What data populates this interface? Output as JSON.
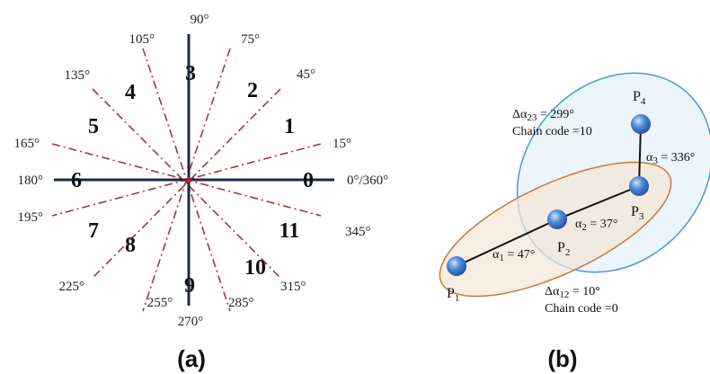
{
  "panel_a": {
    "caption": "(a)",
    "angle_labels": [
      "90°",
      "105°",
      "75°",
      "45°",
      "135°",
      "15°",
      "165°",
      "180°",
      "0°/360°",
      "195°",
      "345°",
      "225°",
      "315°",
      "255°",
      "285°",
      "270°"
    ],
    "codes": [
      "3",
      "4",
      "2",
      "1",
      "5",
      "6",
      "0",
      "7",
      "8",
      "11",
      "10",
      "9"
    ]
  },
  "panel_b": {
    "caption": "(b)",
    "points": [
      {
        "base": "P",
        "sub": "1"
      },
      {
        "base": "P",
        "sub": "2"
      },
      {
        "base": "P",
        "sub": "3"
      },
      {
        "base": "P",
        "sub": "4"
      }
    ],
    "segment_angles": [
      {
        "sym": "α",
        "sub": "1",
        "value": " = 47°"
      },
      {
        "sym": "α",
        "sub": "2",
        "value": " = 37°"
      },
      {
        "sym": "α",
        "sub": "3",
        "value": " = 336°"
      }
    ],
    "notes": {
      "upper": {
        "delta": "Δα",
        "sub": "23",
        "value": " = 299°",
        "chain": "Chain code =10"
      },
      "lower": {
        "delta": "Δα",
        "sub": "12",
        "value": " = 10°",
        "chain": "Chain code =0"
      }
    },
    "colors": {
      "orange_ellipse": "#c87a3c",
      "blue_ellipse": "#4a9ad8",
      "point_fill": "#2f73c8"
    }
  }
}
